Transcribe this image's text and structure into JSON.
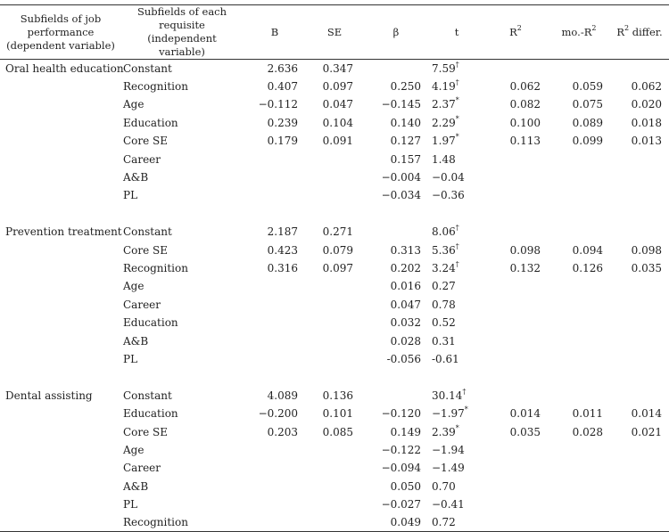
{
  "header": {
    "dependent": "Subfields of job performance (dependent variable)",
    "independent": "Subfields of each requisite (independent variable)",
    "b": "B",
    "se": "SE",
    "beta": "β",
    "t": "t",
    "r2": "R",
    "mo": "mo.-R",
    "diff": " differ.",
    "sup2": "2"
  },
  "groups": [
    {
      "name": "Oral health education",
      "rows": [
        {
          "pred": "Constant",
          "b": "2.636",
          "se": "0.347",
          "beta": "",
          "t": "7.59",
          "tsup": "†",
          "r2": "",
          "mo": "",
          "diff": ""
        },
        {
          "pred": "Recognition",
          "b": "0.407",
          "se": "0.097",
          "beta": "0.250",
          "t": "4.19",
          "tsup": "†",
          "r2": "0.062",
          "mo": "0.059",
          "diff": "0.062"
        },
        {
          "pred": "Age",
          "b": "−0.112",
          "se": "0.047",
          "beta": "−0.145",
          "t": "2.37",
          "tsup": "*",
          "r2": "0.082",
          "mo": "0.075",
          "diff": "0.020"
        },
        {
          "pred": "Education",
          "b": "0.239",
          "se": "0.104",
          "beta": "0.140",
          "t": "2.29",
          "tsup": "*",
          "r2": "0.100",
          "mo": "0.089",
          "diff": "0.018"
        },
        {
          "pred": "Core SE",
          "b": "0.179",
          "se": "0.091",
          "beta": "0.127",
          "t": "1.97",
          "tsup": "*",
          "r2": "0.113",
          "mo": "0.099",
          "diff": "0.013"
        },
        {
          "pred": "Career",
          "b": "",
          "se": "",
          "beta": "0.157",
          "t": "1.48",
          "tsup": "",
          "r2": "",
          "mo": "",
          "diff": ""
        },
        {
          "pred": "A&B",
          "b": "",
          "se": "",
          "beta": "−0.004",
          "t": "−0.04",
          "tsup": "",
          "r2": "",
          "mo": "",
          "diff": ""
        },
        {
          "pred": "PL",
          "b": "",
          "se": "",
          "beta": "−0.034",
          "t": "−0.36",
          "tsup": "",
          "r2": "",
          "mo": "",
          "diff": ""
        }
      ]
    },
    {
      "name": "Prevention treatment",
      "rows": [
        {
          "pred": "Constant",
          "b": "2.187",
          "se": "0.271",
          "beta": "",
          "t": "8.06",
          "tsup": "†",
          "r2": "",
          "mo": "",
          "diff": ""
        },
        {
          "pred": "Core SE",
          "b": "0.423",
          "se": "0.079",
          "beta": "0.313",
          "t": "5.36",
          "tsup": "†",
          "r2": "0.098",
          "mo": "0.094",
          "diff": "0.098"
        },
        {
          "pred": "Recognition",
          "b": "0.316",
          "se": "0.097",
          "beta": "0.202",
          "t": "3.24",
          "tsup": "†",
          "r2": "0.132",
          "mo": "0.126",
          "diff": "0.035"
        },
        {
          "pred": "Age",
          "b": "",
          "se": "",
          "beta": "0.016",
          "t": "0.27",
          "tsup": "",
          "r2": "",
          "mo": "",
          "diff": ""
        },
        {
          "pred": "Career",
          "b": "",
          "se": "",
          "beta": "0.047",
          "t": "0.78",
          "tsup": "",
          "r2": "",
          "mo": "",
          "diff": ""
        },
        {
          "pred": "Education",
          "b": "",
          "se": "",
          "beta": "0.032",
          "t": "0.52",
          "tsup": "",
          "r2": "",
          "mo": "",
          "diff": ""
        },
        {
          "pred": "A&B",
          "b": "",
          "se": "",
          "beta": "0.028",
          "t": "0.31",
          "tsup": "",
          "r2": "",
          "mo": "",
          "diff": ""
        },
        {
          "pred": "PL",
          "b": "",
          "se": "",
          "beta": "-0.056",
          "t": "-0.61",
          "tsup": "",
          "r2": "",
          "mo": "",
          "diff": ""
        }
      ]
    },
    {
      "name": "Dental assisting",
      "rows": [
        {
          "pred": "Constant",
          "b": "4.089",
          "se": "0.136",
          "beta": "",
          "t": "30.14",
          "tsup": "†",
          "r2": "",
          "mo": "",
          "diff": ""
        },
        {
          "pred": "Education",
          "b": "−0.200",
          "se": "0.101",
          "beta": "−0.120",
          "t": "−1.97",
          "tsup": "*",
          "r2": "0.014",
          "mo": "0.011",
          "diff": "0.014"
        },
        {
          "pred": "Core SE",
          "b": "0.203",
          "se": "0.085",
          "beta": "0.149",
          "t": "2.39",
          "tsup": "*",
          "r2": "0.035",
          "mo": "0.028",
          "diff": "0.021"
        },
        {
          "pred": "Age",
          "b": "",
          "se": "",
          "beta": "−0.122",
          "t": "−1.94",
          "tsup": "",
          "r2": "",
          "mo": "",
          "diff": ""
        },
        {
          "pred": "Career",
          "b": "",
          "se": "",
          "beta": "−0.094",
          "t": "−1.49",
          "tsup": "",
          "r2": "",
          "mo": "",
          "diff": ""
        },
        {
          "pred": "A&B",
          "b": "",
          "se": "",
          "beta": "0.050",
          "t": "0.70",
          "tsup": "",
          "r2": "",
          "mo": "",
          "diff": ""
        },
        {
          "pred": "PL",
          "b": "",
          "se": "",
          "beta": "−0.027",
          "t": "−0.41",
          "tsup": "",
          "r2": "",
          "mo": "",
          "diff": ""
        },
        {
          "pred": "Recognition",
          "b": "",
          "se": "",
          "beta": "0.049",
          "t": "0.72",
          "tsup": "",
          "r2": "",
          "mo": "",
          "diff": ""
        }
      ]
    }
  ]
}
